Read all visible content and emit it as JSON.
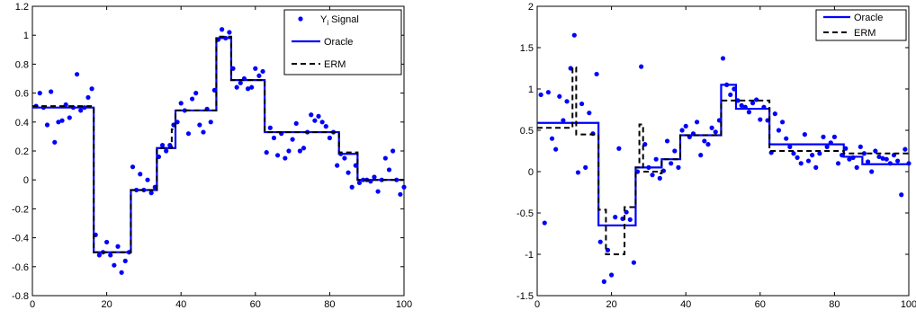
{
  "chart_data": [
    {
      "type": "scatter",
      "title": "",
      "xlabel": "",
      "ylabel": "",
      "xlim": [
        0,
        100
      ],
      "ylim": [
        -0.8,
        1.2
      ],
      "xticks": [
        "0",
        "20",
        "40",
        "60",
        "80",
        "100"
      ],
      "xtick_values": [
        0,
        20,
        40,
        60,
        80,
        100
      ],
      "yticks": [
        "-0.8",
        "-0.6",
        "-0.4",
        "-0.2",
        "0",
        "0.2",
        "0.4",
        "0.6",
        "0.8",
        "1",
        "1.2"
      ],
      "ytick_values": [
        -0.8,
        -0.6,
        -0.4,
        -0.2,
        0,
        0.2,
        0.4,
        0.6,
        0.8,
        1,
        1.2
      ],
      "grid": false,
      "legend_position": "top-right",
      "series": [
        {
          "name": "Y Signal",
          "legend_main": "Y",
          "legend_sub": "i",
          "legend_rest": " Signal",
          "kind": "points",
          "color": "#0000ff",
          "x": [
            1,
            2,
            3,
            4,
            5,
            6,
            7,
            8,
            9,
            10,
            11,
            12,
            13,
            14,
            15,
            16,
            17,
            18,
            19,
            20,
            21,
            22,
            23,
            24,
            25,
            26,
            27,
            28,
            29,
            30,
            31,
            32,
            33,
            34,
            35,
            36,
            37,
            38,
            39,
            40,
            41,
            42,
            43,
            44,
            45,
            46,
            47,
            48,
            49,
            50,
            51,
            52,
            53,
            54,
            55,
            56,
            57,
            58,
            59,
            60,
            61,
            62,
            63,
            64,
            65,
            66,
            67,
            68,
            69,
            70,
            71,
            72,
            73,
            74,
            75,
            76,
            77,
            78,
            79,
            80,
            81,
            82,
            83,
            84,
            85,
            86,
            87,
            88,
            89,
            90,
            91,
            92,
            93,
            94,
            95,
            96,
            97,
            98,
            99,
            100
          ],
          "y": [
            0.51,
            0.6,
            0.5,
            0.38,
            0.61,
            0.26,
            0.4,
            0.41,
            0.52,
            0.43,
            0.5,
            0.73,
            0.48,
            0.5,
            0.57,
            0.63,
            -0.38,
            -0.52,
            -0.5,
            -0.43,
            -0.52,
            -0.59,
            -0.46,
            -0.64,
            -0.56,
            -0.5,
            0.09,
            -0.07,
            0.04,
            -0.07,
            0.0,
            -0.09,
            -0.05,
            0.16,
            0.24,
            0.2,
            0.24,
            0.38,
            0.4,
            0.53,
            0.48,
            0.32,
            0.56,
            0.6,
            0.38,
            0.33,
            0.49,
            0.4,
            0.62,
            0.97,
            1.04,
            0.98,
            1.02,
            0.77,
            0.64,
            0.67,
            0.7,
            0.63,
            0.64,
            0.77,
            0.72,
            0.75,
            0.19,
            0.36,
            0.29,
            0.17,
            0.32,
            0.15,
            0.2,
            0.28,
            0.39,
            0.2,
            0.22,
            0.33,
            0.45,
            0.41,
            0.44,
            0.4,
            0.37,
            0.29,
            0.33,
            0.1,
            0.18,
            0.15,
            0.05,
            -0.05,
            0.1,
            -0.02,
            0.0,
            0.0,
            -0.01,
            0.02,
            -0.08,
            0.0,
            0.15,
            0.07,
            0.2,
            0.0,
            -0.1,
            -0.05
          ]
        },
        {
          "name": "Oracle",
          "kind": "step",
          "color": "#0000ff",
          "dash": "none",
          "breaks": [
            0,
            16.5,
            26.5,
            33.5,
            38.5,
            49.5,
            53.5,
            62.5,
            82.5,
            87.5,
            100
          ],
          "levels": [
            0.5,
            -0.5,
            -0.07,
            0.22,
            0.48,
            0.98,
            0.69,
            0.33,
            0.18,
            0.0
          ]
        },
        {
          "name": "ERM",
          "kind": "step",
          "color": "#000000",
          "dash": "dash",
          "breaks": [
            0,
            16.5,
            26.5,
            33.5,
            37.5,
            38.5,
            49.5,
            53.5,
            62.5,
            82.5,
            87.5,
            100
          ],
          "levels": [
            0.51,
            -0.5,
            -0.07,
            0.22,
            0.35,
            0.48,
            0.99,
            0.69,
            0.33,
            0.19,
            0.0
          ]
        }
      ]
    },
    {
      "type": "scatter",
      "title": "",
      "xlabel": "",
      "ylabel": "",
      "xlim": [
        0,
        100
      ],
      "ylim": [
        -1.5,
        2
      ],
      "xticks": [
        "0",
        "20",
        "40",
        "60",
        "80",
        "100"
      ],
      "xtick_values": [
        0,
        20,
        40,
        60,
        80,
        100
      ],
      "yticks": [
        "-1.5",
        "-1",
        "-0.5",
        "0",
        "0.5",
        "1",
        "1.5",
        "2"
      ],
      "ytick_values": [
        -1.5,
        -1,
        -0.5,
        0,
        0.5,
        1,
        1.5,
        2
      ],
      "grid": false,
      "legend_position": "top-right",
      "series": [
        {
          "name": "",
          "kind": "points",
          "color": "#0000ff",
          "x": [
            1,
            2,
            3,
            4,
            5,
            6,
            7,
            8,
            9,
            10,
            11,
            12,
            13,
            14,
            15,
            16,
            17,
            18,
            19,
            20,
            21,
            22,
            23,
            24,
            25,
            26,
            27,
            28,
            29,
            30,
            31,
            32,
            33,
            34,
            35,
            36,
            37,
            38,
            39,
            40,
            41,
            42,
            43,
            44,
            45,
            46,
            47,
            48,
            49,
            50,
            51,
            52,
            53,
            54,
            55,
            56,
            57,
            58,
            59,
            60,
            61,
            62,
            63,
            64,
            65,
            66,
            67,
            68,
            69,
            70,
            71,
            72,
            73,
            74,
            75,
            76,
            77,
            78,
            79,
            80,
            81,
            82,
            83,
            84,
            85,
            86,
            87,
            88,
            89,
            90,
            91,
            92,
            93,
            94,
            95,
            96,
            97,
            98,
            99,
            100
          ],
          "y": [
            0.93,
            -0.62,
            0.96,
            0.4,
            0.27,
            0.91,
            0.62,
            0.85,
            1.25,
            1.65,
            -0.01,
            0.82,
            0.05,
            0.71,
            0.46,
            1.18,
            -0.85,
            -1.33,
            -0.95,
            -1.25,
            -0.55,
            0.28,
            -0.57,
            -0.49,
            -0.58,
            -1.1,
            0.0,
            1.27,
            0.33,
            0.05,
            -0.04,
            0.15,
            -0.08,
            0.01,
            0.37,
            0.1,
            0.25,
            0.05,
            0.5,
            0.55,
            0.42,
            0.46,
            0.6,
            0.2,
            0.37,
            0.33,
            0.53,
            0.48,
            0.62,
            1.37,
            1.05,
            0.93,
            1.0,
            0.86,
            0.8,
            0.78,
            0.72,
            0.83,
            0.87,
            0.63,
            0.78,
            0.62,
            0.23,
            0.7,
            0.5,
            0.6,
            0.4,
            0.3,
            0.22,
            0.17,
            0.1,
            0.45,
            0.13,
            0.2,
            0.05,
            0.22,
            0.42,
            0.3,
            0.35,
            0.42,
            0.1,
            0.2,
            0.28,
            0.15,
            0.17,
            0.05,
            0.3,
            0.22,
            0.12,
            0.0,
            0.25,
            0.18,
            0.16,
            0.15,
            0.1,
            0.2,
            0.13,
            -0.28,
            0.27,
            0.1
          ]
        },
        {
          "name": "Oracle",
          "kind": "step",
          "color": "#0000ff",
          "dash": "none",
          "breaks": [
            0,
            16.5,
            23.5,
            26.5,
            33.5,
            38.5,
            49.5,
            53.5,
            62.5,
            82.5,
            87.5,
            100
          ],
          "levels": [
            0.59,
            -0.65,
            -0.65,
            0.05,
            0.15,
            0.44,
            1.05,
            0.76,
            0.33,
            0.18,
            0.09
          ]
        },
        {
          "name": "ERM",
          "kind": "step",
          "color": "#000000",
          "dash": "dash",
          "breaks": [
            0,
            7.5,
            9.5,
            10.5,
            16.5,
            18.5,
            23.5,
            26.5,
            27.5,
            28.5,
            32.5,
            33.5,
            38.5,
            49.5,
            53.5,
            62.5,
            67.5,
            82.5,
            87.5,
            100
          ],
          "levels": [
            0.53,
            0.53,
            1.26,
            0.45,
            -0.46,
            -1.0,
            -0.43,
            0.05,
            0.57,
            0.0,
            -0.02,
            0.15,
            0.44,
            0.86,
            0.86,
            0.25,
            0.25,
            0.22,
            0.22,
            0.22
          ]
        }
      ]
    }
  ]
}
